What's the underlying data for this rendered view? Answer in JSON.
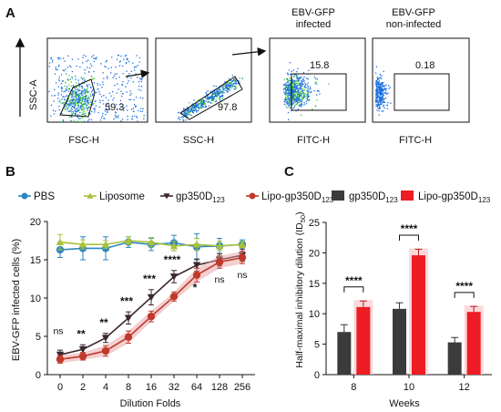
{
  "panels": {
    "a": "A",
    "b": "B",
    "c": "C"
  },
  "flow": {
    "plots": [
      {
        "xlabel": "FSC-H",
        "ylabel": "SSC-A",
        "gate_value": "59.3",
        "title": ""
      },
      {
        "xlabel": "SSC-H",
        "ylabel": "",
        "gate_value": "97.8",
        "title": ""
      },
      {
        "xlabel": "FITC-H",
        "ylabel": "",
        "gate_value": "15.8",
        "title_line1": "EBV-GFP",
        "title_line2": "infected"
      },
      {
        "xlabel": "FITC-H",
        "ylabel": "",
        "gate_value": "0.18",
        "title_line1": "EBV-GFP",
        "title_line2": "non-infected"
      }
    ],
    "colors": {
      "dots": "#1b6fe0",
      "core": "#3fd21a"
    }
  },
  "chart_data": [
    {
      "type": "line",
      "xlabel": "Dilution  Folds",
      "ylabel": "EBV-GFP infected cells (%)",
      "categories": [
        "0",
        "2",
        "4",
        "8",
        "16",
        "32",
        "64",
        "128",
        "256"
      ],
      "ylim": [
        0,
        20
      ],
      "yticks": [
        "0",
        "5",
        "10",
        "15",
        "20"
      ],
      "legend_position": "top",
      "series": [
        {
          "name": "PBS",
          "color": "#2e86c1",
          "marker": "circle",
          "values": [
            16.3,
            16.5,
            16.5,
            17.3,
            17.0,
            17.2,
            16.7,
            16.8,
            17.0
          ],
          "errors": [
            1.0,
            1.5,
            1.5,
            0.7,
            0.8,
            1.0,
            1.7,
            1.0,
            0.6
          ]
        },
        {
          "name": "Liposome",
          "color": "#a8c23a",
          "marker": "triangle-up",
          "values": [
            17.3,
            17.0,
            17.0,
            17.5,
            17.3,
            16.8,
            17.0,
            16.8,
            17.0
          ],
          "errors": [
            1.0,
            0.6,
            0.5,
            0.5,
            0.6,
            0.6,
            0.8,
            0.6,
            0.4
          ]
        },
        {
          "name": "gp350D123",
          "name_base": "gp350D",
          "name_sub": "123",
          "color": "#3a2730",
          "marker": "triangle-down",
          "values": [
            2.6,
            3.3,
            4.8,
            7.4,
            10.1,
            12.8,
            14.3,
            15.0,
            15.6
          ],
          "errors": [
            0.6,
            0.6,
            0.6,
            0.8,
            1.0,
            0.8,
            0.8,
            0.8,
            0.8
          ]
        },
        {
          "name": "Lipo-gp350D123",
          "name_base": "Lipo-gp350D",
          "name_sub": "123",
          "color": "#c0392b",
          "marker": "circle",
          "values": [
            2.0,
            2.4,
            3.1,
            4.9,
            7.6,
            10.2,
            13.0,
            14.7,
            15.3
          ],
          "errors": [
            0.5,
            0.5,
            0.7,
            0.8,
            0.7,
            0.6,
            0.9,
            0.8,
            0.8
          ]
        }
      ],
      "annotations": [
        "ns",
        "**",
        "**",
        "***",
        "***",
        "****",
        "*",
        "ns",
        "ns"
      ]
    },
    {
      "type": "bar",
      "xlabel": "Weeks",
      "ylabel": "Half-maximal inhibitory dilution (ID",
      "ylabel_sub": "50",
      "ylabel_end": ")",
      "categories": [
        "8",
        "10",
        "12"
      ],
      "ylim": [
        0,
        25
      ],
      "yticks": [
        "0",
        "5",
        "10",
        "15",
        "20",
        "25"
      ],
      "legend_position": "top",
      "series": [
        {
          "name": "gp350D123",
          "name_base": "gp350D",
          "name_sub": "123",
          "color": "#3b3b3b",
          "values": [
            7.0,
            10.8,
            5.3
          ],
          "errors": [
            1.2,
            1.0,
            0.8
          ]
        },
        {
          "name": "Lipo-gp350D123",
          "name_base": "Lipo-gp350D",
          "name_sub": "123",
          "color": "#ee1c25",
          "values": [
            11.1,
            19.6,
            10.3
          ],
          "errors": [
            1.0,
            1.0,
            0.9
          ]
        }
      ],
      "annotations": [
        "****",
        "****",
        "****"
      ]
    }
  ]
}
